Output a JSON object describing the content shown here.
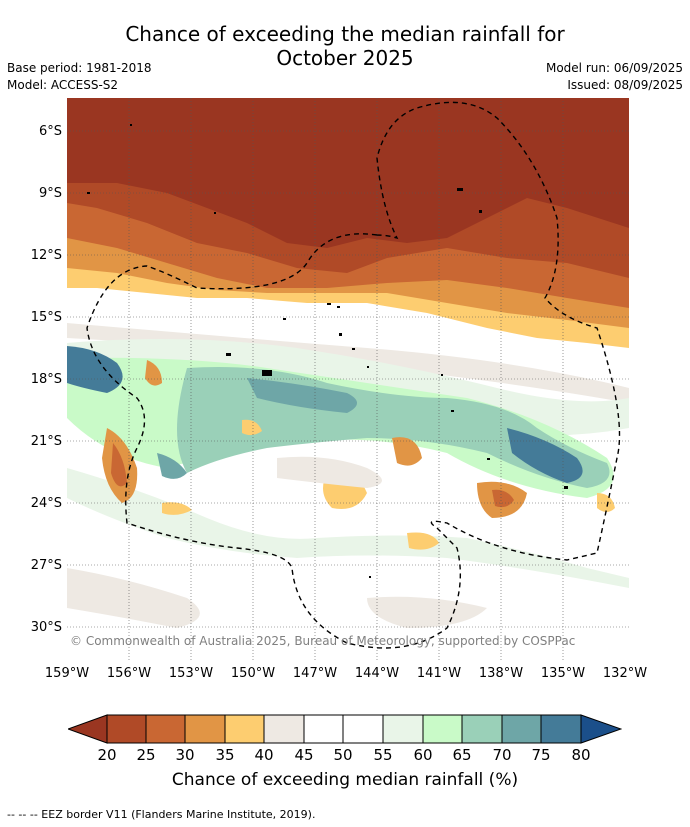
{
  "title_line1": "Chance of exceeding the median rainfall for",
  "title_line2": "October 2025",
  "meta_left": [
    "Base period: 1981-2018",
    "Model: ACCESS-S2"
  ],
  "meta_right": [
    "Model run: 06/09/2025",
    "Issued: 08/09/2025"
  ],
  "lat_labels": [
    "6°S",
    "9°S",
    "12°S",
    "15°S",
    "18°S",
    "21°S",
    "24°S",
    "27°S",
    "30°S"
  ],
  "lon_labels": [
    "159°W",
    "156°W",
    "153°W",
    "150°W",
    "147°W",
    "144°W",
    "141°W",
    "138°W",
    "135°W",
    "132°W"
  ],
  "copyright": "© Commonwealth of Australia 2025, Bureau of Meteorology, supported by COSPPac",
  "colorbar": {
    "ticks": [
      "20",
      "25",
      "30",
      "35",
      "40",
      "45",
      "50",
      "55",
      "60",
      "65",
      "70",
      "75",
      "80"
    ],
    "colors": [
      "#9a3621",
      "#b04a27",
      "#c96733",
      "#e19545",
      "#fdcd70",
      "#eee9e3",
      "#ffffff",
      "#ffffff",
      "#e9f5e8",
      "#c9fac8",
      "#9ad0b8",
      "#6ea6a7",
      "#447b98",
      "#1b4f8a"
    ],
    "label": "Chance of exceeding median rainfall (%)"
  },
  "footer": "-- -- -- EEZ border V11 (Flanders Marine Institute, 2019)."
}
